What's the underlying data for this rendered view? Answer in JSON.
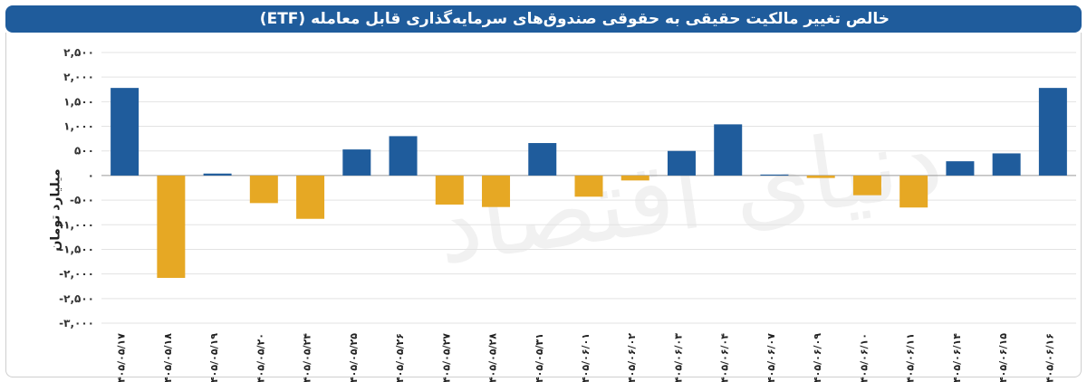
{
  "title": "خالص تغییر مالکیت حقیقی به حقوقی صندوق‌های سرمایه‌گذاری قابل معامله (ETF)",
  "watermark": "دنیای اقتصاد",
  "colors": {
    "positive": "#1f5c9c",
    "negative": "#e6a824",
    "header": "#1f5c9c"
  },
  "chart_data": {
    "type": "bar",
    "title": "خالص تغییر مالکیت حقیقی به حقوقی صندوق‌های سرمایه‌گذاری قابل معامله (ETF)",
    "xlabel": "",
    "ylabel": "میلیارد تومان",
    "ylim": [
      -3000,
      2500
    ],
    "yticks": [
      2500,
      2000,
      1500,
      1000,
      500,
      0,
      -500,
      -1000,
      -1500,
      -2000,
      -2500,
      -3000
    ],
    "ytick_labels": [
      "۲,۵۰۰",
      "۲,۰۰۰",
      "۱,۵۰۰",
      "۱,۰۰۰",
      "۵۰۰",
      "۰",
      "-۵۰۰",
      "-۱,۰۰۰",
      "-۱,۵۰۰",
      "-۲,۰۰۰",
      "-۲,۵۰۰",
      "-۳,۰۰۰"
    ],
    "grid": "horizontal",
    "categories": [
      "۱۴۰۵/۰۵/۱۷",
      "۱۴۰۵/۰۵/۱۸",
      "۱۴۰۵/۰۵/۱۹",
      "۱۴۰۵/۰۵/۲۰",
      "۱۴۰۵/۰۵/۲۴",
      "۱۴۰۵/۰۵/۲۵",
      "۱۴۰۵/۰۵/۲۶",
      "۱۴۰۵/۰۵/۲۷",
      "۱۴۰۵/۰۵/۲۸",
      "۱۴۰۵/۰۵/۳۱",
      "۱۴۰۵/۰۶/۰۱",
      "۱۴۰۵/۰۶/۰۲",
      "۱۴۰۵/۰۶/۰۳",
      "۱۴۰۵/۰۶/۰۴",
      "۱۴۰۵/۰۶/۰۷",
      "۱۴۰۵/۰۶/۰۹",
      "۱۴۰۵/۰۶/۱۰",
      "۱۴۰۵/۰۶/۱۱",
      "۱۴۰۵/۰۶/۱۴",
      "۱۴۰۵/۰۶/۱۵",
      "۱۴۰۵/۰۶/۱۶"
    ],
    "values": [
      1780,
      -2080,
      40,
      -560,
      -880,
      530,
      800,
      -590,
      -640,
      660,
      -430,
      -100,
      500,
      1040,
      20,
      -50,
      -400,
      -650,
      290,
      450,
      1780
    ]
  }
}
